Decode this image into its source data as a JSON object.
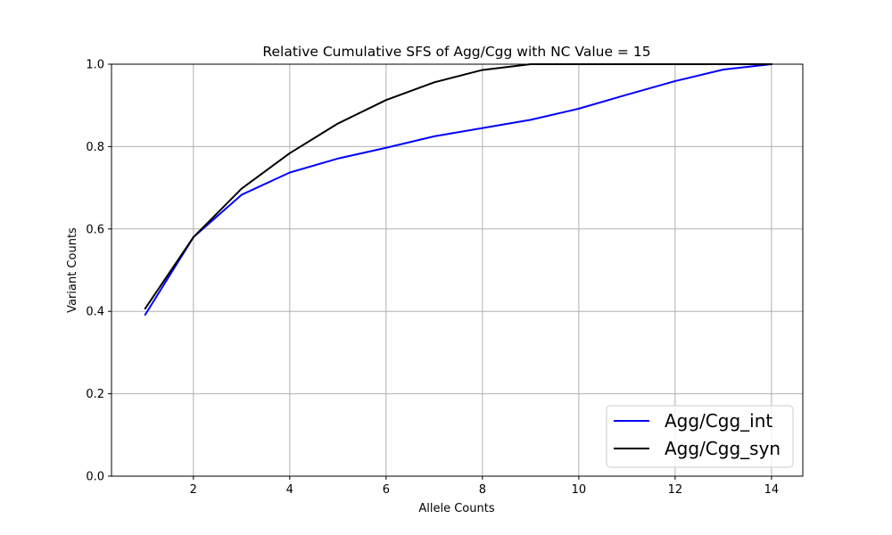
{
  "chart_data": {
    "type": "line",
    "title": "Relative Cumulative SFS of Agg/Cgg with NC Value = 15",
    "xlabel": "Allele Counts",
    "ylabel": "Variant Counts",
    "xlim": [
      0.3,
      14.65
    ],
    "ylim": [
      0.0,
      1.0
    ],
    "xticks": [
      2,
      4,
      6,
      8,
      10,
      12,
      14
    ],
    "yticks": [
      0.0,
      0.2,
      0.4,
      0.6,
      0.8,
      1.0
    ],
    "xtick_labels": [
      "2",
      "4",
      "6",
      "8",
      "10",
      "12",
      "14"
    ],
    "ytick_labels": [
      "0.0",
      "0.2",
      "0.4",
      "0.6",
      "0.8",
      "1.0"
    ],
    "grid": true,
    "legend_position": "bottom-right",
    "x": [
      1,
      2,
      3,
      4,
      5,
      6,
      7,
      8,
      9,
      10,
      11,
      12,
      13,
      14
    ],
    "series": [
      {
        "name": "Agg/Cgg_int",
        "color": "#0000ff",
        "values": [
          0.392,
          0.58,
          0.683,
          0.737,
          0.771,
          0.797,
          0.825,
          0.845,
          0.865,
          0.892,
          0.926,
          0.959,
          0.987,
          1.0
        ]
      },
      {
        "name": "Agg/Cgg_syn",
        "color": "#000000",
        "values": [
          0.407,
          0.58,
          0.698,
          0.784,
          0.856,
          0.913,
          0.956,
          0.986,
          1.0,
          1.0,
          1.0,
          1.0,
          1.0,
          1.0
        ]
      }
    ]
  }
}
